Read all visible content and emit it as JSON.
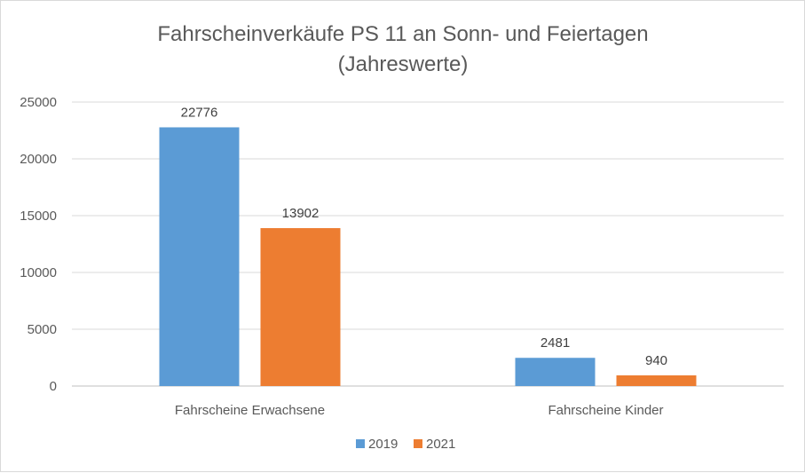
{
  "chart_data": {
    "type": "bar",
    "title": "Fahrscheinverkäufe  PS 11 an Sonn- und Feiertagen",
    "subtitle": "(Jahreswerte)",
    "categories": [
      "Fahrscheine Erwachsene",
      "Fahrscheine Kinder"
    ],
    "series": [
      {
        "name": "2019",
        "color": "#5b9bd5",
        "values": [
          22776,
          2481
        ]
      },
      {
        "name": "2021",
        "color": "#ed7d31",
        "values": [
          13902,
          940
        ]
      }
    ],
    "ylim": [
      0,
      25000
    ],
    "yticks": [
      "0",
      "5000",
      "10000",
      "15000",
      "20000",
      "25000"
    ],
    "grid": true,
    "legend": "bottom",
    "data_labels": true
  }
}
